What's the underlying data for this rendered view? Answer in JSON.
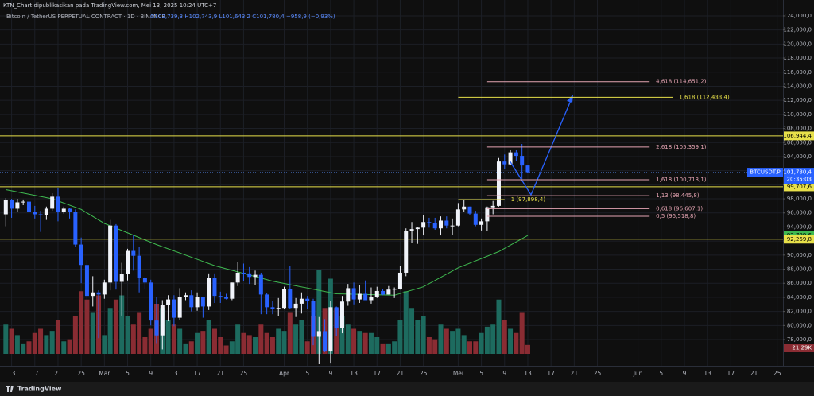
{
  "header": {
    "publisher": "KTN_Chart dipublikasikan pada TradingView.com, Mei 13, 2025 10:24 UTC+7",
    "symbol": "Bitcoin / TetherUS PERPETUAL CONTRACT · 1D · BINANCE",
    "ohlc": "O102,739,3 H102,743,9 L101,643,2 C101,780,4 −958,9 (−0,93%)"
  },
  "footer": "TradingView",
  "chart_data": {
    "type": "candlestick",
    "x": [
      "2025-02-12",
      "2025-02-13",
      "2025-02-14",
      "2025-02-15",
      "2025-02-16",
      "2025-02-17",
      "2025-02-18",
      "2025-02-19",
      "2025-02-20",
      "2025-02-21",
      "2025-02-22",
      "2025-02-23",
      "2025-02-24",
      "2025-02-25",
      "2025-02-26",
      "2025-02-27",
      "2025-02-28",
      "2025-03-01",
      "2025-03-02",
      "2025-03-03",
      "2025-03-04",
      "2025-03-05",
      "2025-03-06",
      "2025-03-07",
      "2025-03-08",
      "2025-03-09",
      "2025-03-10",
      "2025-03-11",
      "2025-03-12",
      "2025-03-13",
      "2025-03-14",
      "2025-03-15",
      "2025-03-16",
      "2025-03-17",
      "2025-03-18",
      "2025-03-19",
      "2025-03-20",
      "2025-03-21",
      "2025-03-22",
      "2025-03-23",
      "2025-03-24",
      "2025-03-25",
      "2025-03-26",
      "2025-03-27",
      "2025-03-28",
      "2025-03-29",
      "2025-03-30",
      "2025-03-31",
      "2025-04-01",
      "2025-04-02",
      "2025-04-03",
      "2025-04-04",
      "2025-04-05",
      "2025-04-06",
      "2025-04-07",
      "2025-04-08",
      "2025-04-09",
      "2025-04-10",
      "2025-04-11",
      "2025-04-12",
      "2025-04-13",
      "2025-04-14",
      "2025-04-15",
      "2025-04-16",
      "2025-04-17",
      "2025-04-18",
      "2025-04-19",
      "2025-04-20",
      "2025-04-21",
      "2025-04-22",
      "2025-04-23",
      "2025-04-24",
      "2025-04-25",
      "2025-04-26",
      "2025-04-27",
      "2025-04-28",
      "2025-04-29",
      "2025-04-30",
      "2025-05-01",
      "2025-05-02",
      "2025-05-03",
      "2025-05-04",
      "2025-05-05",
      "2025-05-06",
      "2025-05-07",
      "2025-05-08",
      "2025-05-09",
      "2025-05-10",
      "2025-05-11",
      "2025-05-12",
      "2025-05-13"
    ],
    "open": [
      95800,
      97800,
      96600,
      97500,
      97600,
      96100,
      95800,
      95700,
      96600,
      98300,
      96100,
      96600,
      96100,
      91500,
      88600,
      84200,
      84700,
      84400,
      86100,
      94200,
      86200,
      87300,
      90600,
      89900,
      86800,
      86100,
      80700,
      78600,
      82900,
      83700,
      81100,
      84000,
      84300,
      82600,
      84000,
      82700,
      86800,
      84200,
      84100,
      83800,
      86100,
      87500,
      87400,
      86900,
      87200,
      84400,
      82600,
      82400,
      82500,
      85200,
      82500,
      83100,
      83800,
      83500,
      78400,
      79200,
      76300,
      82600,
      79600,
      83400,
      85300,
      83700,
      84500,
      83600,
      84000,
      84900,
      84400,
      85100,
      85200,
      87500,
      93400,
      93700,
      93900,
      94700,
      94600,
      93800,
      94900,
      94200,
      94200,
      96500,
      96900,
      95900,
      94300,
      94800,
      96800,
      97000,
      103300,
      102900,
      104600,
      104100,
      102739.3
    ],
    "high": [
      98100,
      98000,
      98000,
      97900,
      97700,
      97000,
      96300,
      96900,
      98800,
      99500,
      96900,
      96700,
      96500,
      92500,
      89300,
      87000,
      85000,
      86500,
      95000,
      94400,
      88900,
      90900,
      92800,
      91200,
      86900,
      86500,
      84000,
      83600,
      84300,
      84300,
      85300,
      84700,
      85000,
      84700,
      84000,
      87400,
      87400,
      84800,
      84500,
      86100,
      89000,
      88800,
      88300,
      87800,
      87500,
      84600,
      83500,
      83900,
      85500,
      88500,
      83900,
      84700,
      84200,
      83800,
      81200,
      80900,
      83500,
      82700,
      84200,
      85900,
      86100,
      85800,
      86400,
      85400,
      85500,
      85200,
      85600,
      85400,
      88500,
      93800,
      94700,
      94000,
      95700,
      95300,
      95300,
      95500,
      95500,
      95200,
      97400,
      97900,
      96900,
      96300,
      95200,
      96900,
      97700,
      103800,
      104300,
      104900,
      104900,
      105800,
      102743.9
    ],
    "low": [
      94100,
      95300,
      96200,
      97100,
      96000,
      95200,
      93300,
      95000,
      96300,
      94800,
      95900,
      95200,
      91200,
      86000,
      82300,
      82700,
      78200,
      83800,
      85000,
      85100,
      81400,
      86400,
      87800,
      84700,
      85200,
      80000,
      77500,
      76600,
      80600,
      79900,
      80800,
      83600,
      82000,
      82100,
      81100,
      82200,
      83200,
      83200,
      83700,
      83600,
      85600,
      86300,
      85900,
      85800,
      81600,
      81600,
      81600,
      81300,
      82400,
      82300,
      81200,
      81700,
      82400,
      77200,
      74500,
      76200,
      74600,
      78500,
      78900,
      82800,
      83000,
      83200,
      83700,
      83100,
      83900,
      84300,
      84400,
      83900,
      85100,
      87000,
      91700,
      91600,
      92800,
      93900,
      93600,
      92800,
      93800,
      92900,
      94100,
      96200,
      95700,
      94100,
      93500,
      93400,
      95800,
      96900,
      102300,
      102800,
      103400,
      100800,
      101643.2
    ],
    "close": [
      97800,
      96600,
      97500,
      97600,
      96100,
      95800,
      95700,
      96600,
      98300,
      96100,
      96600,
      96100,
      91500,
      88600,
      84200,
      84700,
      84400,
      86100,
      94200,
      86200,
      87300,
      90600,
      89900,
      86800,
      86100,
      80700,
      78600,
      82900,
      83700,
      81100,
      84000,
      84300,
      82600,
      84000,
      82700,
      86800,
      84200,
      84100,
      83800,
      86100,
      87500,
      87400,
      86900,
      87200,
      84400,
      82600,
      82400,
      82500,
      85200,
      82500,
      83100,
      83800,
      83500,
      78400,
      79200,
      76300,
      82600,
      79600,
      83400,
      85300,
      83700,
      84500,
      83600,
      84000,
      84900,
      84400,
      85100,
      85200,
      87500,
      93400,
      93700,
      93900,
      94700,
      94600,
      93800,
      94900,
      94200,
      94200,
      96500,
      96900,
      95900,
      94300,
      94800,
      96800,
      97000,
      103300,
      102900,
      104600,
      104100,
      102739.3,
      101780.4
    ],
    "volume": [
      70,
      60,
      45,
      25,
      30,
      50,
      60,
      45,
      55,
      80,
      30,
      35,
      90,
      150,
      130,
      100,
      140,
      45,
      110,
      130,
      140,
      90,
      70,
      100,
      40,
      60,
      120,
      110,
      80,
      70,
      60,
      25,
      30,
      50,
      55,
      80,
      60,
      40,
      20,
      30,
      70,
      50,
      45,
      40,
      70,
      50,
      40,
      60,
      55,
      100,
      70,
      80,
      30,
      90,
      200,
      110,
      180,
      110,
      90,
      70,
      60,
      55,
      50,
      50,
      40,
      25,
      25,
      30,
      80,
      150,
      110,
      80,
      90,
      40,
      35,
      70,
      60,
      55,
      60,
      45,
      30,
      30,
      50,
      65,
      70,
      130,
      80,
      60,
      50,
      100,
      21.29
    ],
    "volume_last_label": "21,29K",
    "up_color": "#f0f3fa",
    "down_color": "#2962ff",
    "volume_up_color": "#1d6b5f",
    "volume_down_color": "#8a2c33",
    "xlim": [
      "2025-02-11",
      "2025-06-26"
    ],
    "ylim": [
      74500,
      124900
    ],
    "grid": true,
    "yticks": [
      {
        "value": 124000,
        "label": "124,000,0"
      },
      {
        "value": 122000,
        "label": "122,000,0"
      },
      {
        "value": 120000,
        "label": "120,000,0"
      },
      {
        "value": 118000,
        "label": "118,000,0"
      },
      {
        "value": 116000,
        "label": "116,000,0"
      },
      {
        "value": 114000,
        "label": "114,000,0"
      },
      {
        "value": 112000,
        "label": "112,000,0"
      },
      {
        "value": 110000,
        "label": "110,000,0"
      },
      {
        "value": 108000,
        "label": "108,000,0"
      },
      {
        "value": 106000,
        "label": "106,000,0"
      },
      {
        "value": 104000,
        "label": "104,000,0"
      },
      {
        "value": 102000,
        "label": "102,000,0"
      },
      {
        "value": 100000,
        "label": "100,000,0"
      },
      {
        "value": 98000,
        "label": "98,000,0"
      },
      {
        "value": 96000,
        "label": "96,000,0"
      },
      {
        "value": 94000,
        "label": "94,000,0"
      },
      {
        "value": 92000,
        "label": "92,000,0"
      },
      {
        "value": 90000,
        "label": "90,000,0"
      },
      {
        "value": 88000,
        "label": "88,000,0"
      },
      {
        "value": 86000,
        "label": "86,000,0"
      },
      {
        "value": 84000,
        "label": "84,000,0"
      },
      {
        "value": 82000,
        "label": "82,000,0"
      },
      {
        "value": 80000,
        "label": "80,000,0"
      },
      {
        "value": 78000,
        "label": "78,000,0"
      }
    ],
    "xticks": [
      {
        "value": "2025-02-13",
        "label": "13"
      },
      {
        "value": "2025-02-17",
        "label": "17"
      },
      {
        "value": "2025-02-21",
        "label": "21"
      },
      {
        "value": "2025-02-25",
        "label": "25"
      },
      {
        "value": "2025-03-01",
        "label": "Mar"
      },
      {
        "value": "2025-03-05",
        "label": "5"
      },
      {
        "value": "2025-03-09",
        "label": "9"
      },
      {
        "value": "2025-03-13",
        "label": "13"
      },
      {
        "value": "2025-03-17",
        "label": "17"
      },
      {
        "value": "2025-03-21",
        "label": "21"
      },
      {
        "value": "2025-03-25",
        "label": "25"
      },
      {
        "value": "2025-04-01",
        "label": "Apr"
      },
      {
        "value": "2025-04-05",
        "label": "5"
      },
      {
        "value": "2025-04-09",
        "label": "9"
      },
      {
        "value": "2025-04-13",
        "label": "13"
      },
      {
        "value": "2025-04-17",
        "label": "17"
      },
      {
        "value": "2025-04-21",
        "label": "21"
      },
      {
        "value": "2025-04-25",
        "label": "25"
      },
      {
        "value": "2025-05-01",
        "label": "Mei"
      },
      {
        "value": "2025-05-05",
        "label": "5"
      },
      {
        "value": "2025-05-09",
        "label": "9"
      },
      {
        "value": "2025-05-13",
        "label": "13"
      },
      {
        "value": "2025-05-17",
        "label": "17"
      },
      {
        "value": "2025-05-21",
        "label": "21"
      },
      {
        "value": "2025-05-25",
        "label": "25"
      },
      {
        "value": "2025-06-01",
        "label": "Jun"
      },
      {
        "value": "2025-06-05",
        "label": "5"
      },
      {
        "value": "2025-06-09",
        "label": "9"
      },
      {
        "value": "2025-06-13",
        "label": "13"
      },
      {
        "value": "2025-06-17",
        "label": "17"
      },
      {
        "value": "2025-06-21",
        "label": "21"
      },
      {
        "value": "2025-06-25",
        "label": "25"
      }
    ],
    "ma": {
      "color": "#3fb950",
      "x": [
        "2025-02-12",
        "2025-02-20",
        "2025-02-25",
        "2025-03-01",
        "2025-03-10",
        "2025-03-20",
        "2025-03-30",
        "2025-04-10",
        "2025-04-20",
        "2025-04-25",
        "2025-05-01",
        "2025-05-08",
        "2025-05-13"
      ],
      "values": [
        99300,
        98000,
        96500,
        94500,
        91500,
        88500,
        86300,
        84500,
        84300,
        85500,
        88200,
        90500,
        92799.6
      ],
      "last_label": "92,799,6"
    },
    "levels": [
      {
        "value": 106944.4,
        "label": "106,944,4",
        "color": "#e8e04a"
      },
      {
        "value": 99707.6,
        "label": "99,707,6",
        "color": "#e8e04a"
      },
      {
        "value": 92269.8,
        "label": "92,269,8",
        "color": "#e8e04a"
      }
    ],
    "last": {
      "symbol": "BTCUSDT.P",
      "value": 101780.4,
      "label": "101,780,4",
      "countdown": "20:35:03",
      "color": "#2962ff"
    },
    "fib": [
      {
        "value": 114651.2,
        "label": "4,618 (114,651,2)",
        "color": "#e6a5b4",
        "from": "2025-05-06",
        "to": "2025-06-03"
      },
      {
        "value": 112433.4,
        "label": "1,618 (112,433,4)",
        "color": "#e8e04a",
        "from": "2025-05-01",
        "to": "2025-06-07"
      },
      {
        "value": 105359.1,
        "label": "2,618 (105,359,1)",
        "color": "#e6a5b4",
        "from": "2025-05-06",
        "to": "2025-06-03"
      },
      {
        "value": 100713.1,
        "label": "1,618 (100,713,1)",
        "color": "#e6a5b4",
        "from": "2025-05-06",
        "to": "2025-06-03"
      },
      {
        "value": 98445.8,
        "label": "1,13 (98,445,8)",
        "color": "#e6a5b4",
        "from": "2025-05-06",
        "to": "2025-06-03"
      },
      {
        "value": 97898.4,
        "label": "1 (97,898,4)",
        "color": "#e8e04a",
        "from": "2025-05-01",
        "to": "2025-05-09"
      },
      {
        "value": 96607.1,
        "label": "0,618 (96,607,1)",
        "color": "#e6a5b4",
        "from": "2025-05-06",
        "to": "2025-06-03"
      },
      {
        "value": 95518.8,
        "label": "0,5 (95,518,8)",
        "color": "#e6a5b4",
        "from": "2025-05-06",
        "to": "2025-06-03"
      }
    ]
  }
}
